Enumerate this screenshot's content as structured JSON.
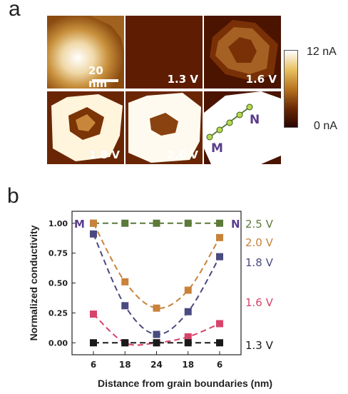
{
  "panel_a": {
    "letter": "a",
    "scale_bar_label": "20 nm",
    "tiles": [
      {
        "label": ""
      },
      {
        "label": "1.3 V"
      },
      {
        "label": "1.6 V"
      },
      {
        "label": "1.8 V"
      },
      {
        "label": "2.0 V"
      },
      {
        "label": "2.5 V"
      }
    ],
    "markers": {
      "start": "M",
      "end": "N"
    },
    "colorbar": {
      "max_label": "12 nA",
      "min_label": "0 nA",
      "colors": [
        "#ffffff",
        "#e8c060",
        "#b8741e",
        "#6a2a05",
        "#2a0500"
      ]
    }
  },
  "panel_b": {
    "letter": "b"
  },
  "chart_data": {
    "type": "line",
    "title": "",
    "xlabel": "Distance from grain boundaries (nm)",
    "ylabel": "Normalized conductivity",
    "categories": [
      "6",
      "18",
      "24",
      "18",
      "6"
    ],
    "x": [
      6,
      18,
      24,
      18,
      6
    ],
    "ylim": [
      -0.1,
      1.1
    ],
    "yticks": [
      "0.00",
      "0.25",
      "0.50",
      "0.75",
      "1.00"
    ],
    "grid": false,
    "left_marker": "M",
    "right_marker": "N",
    "series": [
      {
        "name": "2.5 V",
        "color": "#5c7a3a",
        "values": [
          1.0,
          1.0,
          1.0,
          1.0,
          1.0
        ]
      },
      {
        "name": "2.0 V",
        "color": "#c8823a",
        "values": [
          1.0,
          0.51,
          0.29,
          0.44,
          0.88
        ]
      },
      {
        "name": "1.8 V",
        "color": "#4a4a80",
        "values": [
          0.91,
          0.31,
          0.07,
          0.26,
          0.72
        ]
      },
      {
        "name": "1.6 V",
        "color": "#d8436a",
        "values": [
          0.24,
          0.0,
          0.0,
          0.05,
          0.16
        ]
      },
      {
        "name": "1.3 V",
        "color": "#1a1a1a",
        "values": [
          0.0,
          0.0,
          0.0,
          0.0,
          0.0
        ]
      }
    ]
  }
}
